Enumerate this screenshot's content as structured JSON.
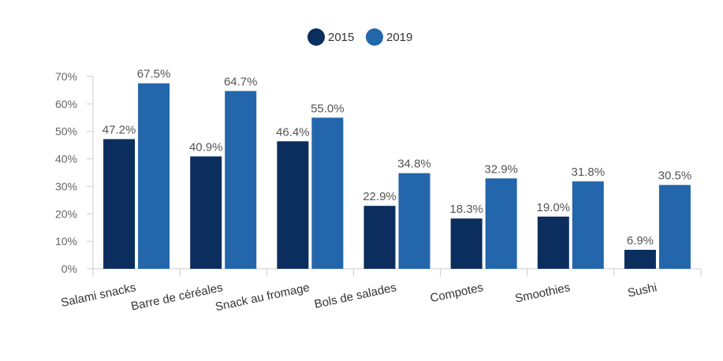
{
  "chart_data": {
    "type": "bar",
    "categories": [
      "Salami snacks",
      "Barre de céréales",
      "Snack au fromage",
      "Bols de salades",
      "Compotes",
      "Smoothies",
      "Sushi"
    ],
    "series": [
      {
        "name": "2015",
        "color": "#0b2e5e",
        "values": [
          47.2,
          40.9,
          46.4,
          22.9,
          18.3,
          19.0,
          6.9
        ],
        "labels": [
          "47.2%",
          "40.9%",
          "46.4%",
          "22.9%",
          "18.3%",
          "19.0%",
          "6.9%"
        ]
      },
      {
        "name": "2019",
        "color": "#2366ab",
        "values": [
          67.5,
          64.7,
          55.0,
          34.8,
          32.9,
          31.8,
          30.5
        ],
        "labels": [
          "67.5%",
          "64.7%",
          "55.0%",
          "34.8%",
          "32.9%",
          "31.8%",
          "30.5%"
        ]
      }
    ],
    "ylim": [
      0,
      70
    ],
    "yticks": [
      "0%",
      "10%",
      "20%",
      "30%",
      "40%",
      "50%",
      "60%",
      "70%"
    ],
    "legend_position": "top-center",
    "grid": false
  }
}
